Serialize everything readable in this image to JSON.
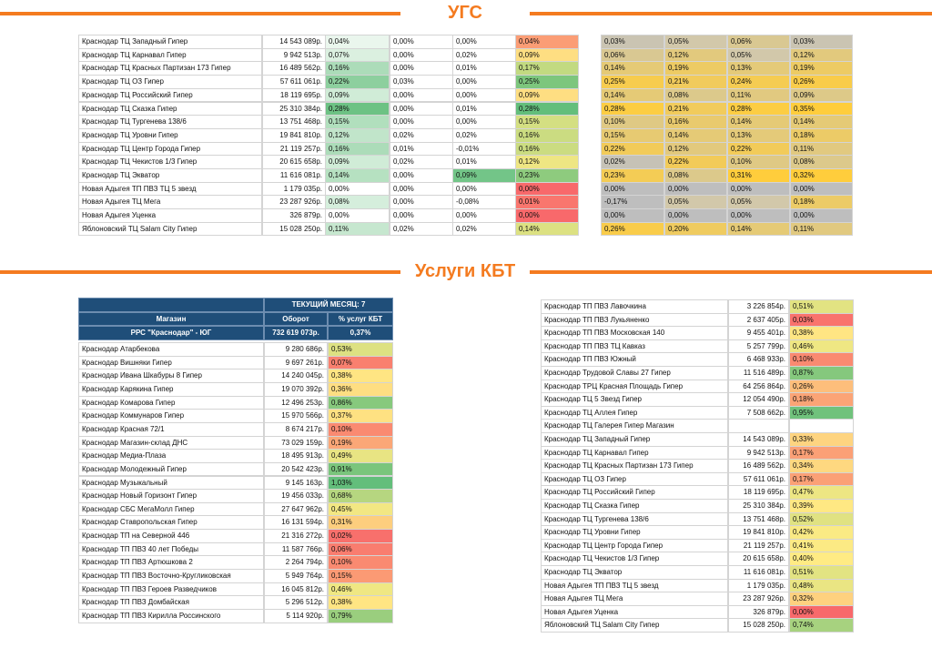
{
  "sections": [
    {
      "title": "УГС"
    },
    {
      "title": "Услуги КБТ"
    }
  ],
  "ugs_table": {
    "rows": [
      [
        "Краснодар ТЦ Западный Гипер",
        "14 543 089р.",
        "0,04%",
        "0,00%",
        "0,00%",
        "0,04%",
        "0,03%",
        "0,05%",
        "0,06%",
        "0,03%"
      ],
      [
        "Краснодар ТЦ Карнавал Гипер",
        "9 942 513р.",
        "0,07%",
        "0,00%",
        "0,02%",
        "0,09%",
        "0,06%",
        "0,12%",
        "0,05%",
        "0,12%"
      ],
      [
        "Краснодар ТЦ Красных Партизан 173 Гипер",
        "16 489 562р.",
        "0,16%",
        "0,00%",
        "0,01%",
        "0,17%",
        "0,14%",
        "0,19%",
        "0,13%",
        "0,19%"
      ],
      [
        "Краснодар ТЦ ОЗ Гипер",
        "57 611 061р.",
        "0,22%",
        "0,03%",
        "0,00%",
        "0,25%",
        "0,25%",
        "0,21%",
        "0,24%",
        "0,26%"
      ],
      [
        "Краснодар ТЦ Российский Гипер",
        "18 119 695р.",
        "0,09%",
        "0,00%",
        "0,00%",
        "0,09%",
        "0,14%",
        "0,08%",
        "0,11%",
        "0,09%"
      ],
      [
        "Краснодар ТЦ Сказка Гипер",
        "25 310 384р.",
        "0,28%",
        "0,00%",
        "0,01%",
        "0,28%",
        "0,28%",
        "0,21%",
        "0,28%",
        "0,35%"
      ],
      [
        "Краснодар ТЦ Тургенева 138/6",
        "13 751 468р.",
        "0,15%",
        "0,00%",
        "0,00%",
        "0,15%",
        "0,10%",
        "0,16%",
        "0,14%",
        "0,14%"
      ],
      [
        "Краснодар ТЦ Уровни Гипер",
        "19 841 810р.",
        "0,12%",
        "0,02%",
        "0,02%",
        "0,16%",
        "0,15%",
        "0,14%",
        "0,13%",
        "0,18%"
      ],
      [
        "Краснодар ТЦ Центр Города Гипер",
        "21 119 257р.",
        "0,16%",
        "0,01%",
        "-0,01%",
        "0,16%",
        "0,22%",
        "0,12%",
        "0,22%",
        "0,11%"
      ],
      [
        "Краснодар ТЦ Чекистов 1/3 Гипер",
        "20 615 658р.",
        "0,09%",
        "0,02%",
        "0,01%",
        "0,12%",
        "0,02%",
        "0,22%",
        "0,10%",
        "0,08%"
      ],
      [
        "Краснодар ТЦ Экватор",
        "11 616 081р.",
        "0,14%",
        "0,00%",
        "0,09%",
        "0,23%",
        "0,23%",
        "0,08%",
        "0,31%",
        "0,32%"
      ],
      [
        "Новая Адыгея ТП ПВЗ ТЦ 5 звезд",
        "1 179 035р.",
        "0,00%",
        "0,00%",
        "0,00%",
        "0,00%",
        "0,00%",
        "0,00%",
        "0,00%",
        "0,00%"
      ],
      [
        "Новая Адыгея ТЦ Мега",
        "23 287 926р.",
        "0,08%",
        "0,00%",
        "-0,08%",
        "0,01%",
        "-0,17%",
        "0,05%",
        "0,05%",
        "0,18%"
      ],
      [
        "Новая Адыгея Уценка",
        "326 879р.",
        "0,00%",
        "0,00%",
        "0,00%",
        "0,00%",
        "0,00%",
        "0,00%",
        "0,00%",
        "0,00%"
      ],
      [
        "Яблоновский ТЦ Salam City Гипер",
        "15 028 250р.",
        "0,11%",
        "0,02%",
        "0,02%",
        "0,14%",
        "0,26%",
        "0,20%",
        "0,14%",
        "0,11%"
      ]
    ]
  },
  "kbt_left": {
    "header": {
      "period": "ТЕКУЩИЙ МЕСЯЦ: 7",
      "columns": [
        "Магазин",
        "Оборот",
        "% услуг КБТ"
      ],
      "total": [
        "РРС \"Краснодар\" - ЮГ",
        "732 619 073р.",
        "0,37%"
      ]
    },
    "rows": [
      [
        "Краснодар Атарбекова",
        "9 280 686р.",
        "0,53%"
      ],
      [
        "Краснодар Вишняки Гипер",
        "9 697 261р.",
        "0,07%"
      ],
      [
        "Краснодар Ивана Шкабуры 8 Гипер",
        "14 240 045р.",
        "0,38%"
      ],
      [
        "Краснодар Карякина Гипер",
        "19 070 392р.",
        "0,36%"
      ],
      [
        "Краснодар Комарова Гипер",
        "12 496 253р.",
        "0,86%"
      ],
      [
        "Краснодар Коммунаров Гипер",
        "15 970 566р.",
        "0,37%"
      ],
      [
        "Краснодар Красная 72/1",
        "8 674 217р.",
        "0,10%"
      ],
      [
        "Краснодар Магазин-склад ДНС",
        "73 029 159р.",
        "0,19%"
      ],
      [
        "Краснодар Медиа-Плаза",
        "18 495 913р.",
        "0,49%"
      ],
      [
        "Краснодар Молодежный Гипер",
        "20 542 423р.",
        "0,91%"
      ],
      [
        "Краснодар Музыкальный",
        "9 145 163р.",
        "1,03%"
      ],
      [
        "Краснодар Новый Горизонт Гипер",
        "19 456 033р.",
        "0,68%"
      ],
      [
        "Краснодар СБС МегаМолл Гипер",
        "27 647 962р.",
        "0,45%"
      ],
      [
        "Краснодар Ставропольская Гипер",
        "16 131 594р.",
        "0,31%"
      ],
      [
        "Краснодар ТП на Северной 446",
        "21 316 272р.",
        "0,02%"
      ],
      [
        "Краснодар ТП ПВЗ 40 лет Победы",
        "11 587 766р.",
        "0,06%"
      ],
      [
        "Краснодар ТП ПВЗ Артюшкова 2",
        "2 264 794р.",
        "0,10%"
      ],
      [
        "Краснодар ТП ПВЗ Восточно-Кругликовская",
        "5 949 764р.",
        "0,15%"
      ],
      [
        "Краснодар ТП ПВЗ Героев Разведчиков",
        "16 045 812р.",
        "0,46%"
      ],
      [
        "Краснодар ТП ПВЗ Домбайская",
        "5 296 512р.",
        "0,38%"
      ],
      [
        "Краснодар ТП ПВЗ Кирилла Россинского",
        "5 114 920р.",
        "0,79%"
      ]
    ]
  },
  "kbt_right": {
    "rows": [
      [
        "Краснодар ТП ПВЗ Лавочкина",
        "3 226 854р.",
        "0,51%"
      ],
      [
        "Краснодар ТП ПВЗ Лукьяненко",
        "2 637 405р.",
        "0,03%"
      ],
      [
        "Краснодар ТП ПВЗ Московская 140",
        "9 455 401р.",
        "0,38%"
      ],
      [
        "Краснодар ТП ПВЗ ТЦ Кавказ",
        "5 257 799р.",
        "0,46%"
      ],
      [
        "Краснодар ТП ПВЗ Южный",
        "6 468 933р.",
        "0,10%"
      ],
      [
        "Краснодар Трудовой Славы 27 Гипер",
        "11 516 489р.",
        "0,87%"
      ],
      [
        "Краснодар ТРЦ Красная Площадь Гипер",
        "64 256 864р.",
        "0,26%"
      ],
      [
        "Краснодар ТЦ 5 Звезд Гипер",
        "12 054 490р.",
        "0,18%"
      ],
      [
        "Краснодар ТЦ Аллея Гипер",
        "7 508 662р.",
        "0,95%"
      ],
      [
        "Краснодар ТЦ Галерея Гипер Магазин"
      ],
      [
        "Краснодар ТЦ Западный Гипер",
        "14 543 089р.",
        "0,33%"
      ],
      [
        "Краснодар ТЦ Карнавал Гипер",
        "9 942 513р.",
        "0,17%"
      ],
      [
        "Краснодар ТЦ Красных Партизан 173 Гипер",
        "16 489 562р.",
        "0,34%"
      ],
      [
        "Краснодар ТЦ ОЗ Гипер",
        "57 611 061р.",
        "0,17%"
      ],
      [
        "Краснодар ТЦ Российский Гипер",
        "18 119 695р.",
        "0,47%"
      ],
      [
        "Краснодар ТЦ Сказка Гипер",
        "25 310 384р.",
        "0,39%"
      ],
      [
        "Краснодар ТЦ Тургенева 138/6",
        "13 751 468р.",
        "0,52%"
      ],
      [
        "Краснодар ТЦ Уровни Гипер",
        "19 841 810р.",
        "0,42%"
      ],
      [
        "Краснодар ТЦ Центр Города Гипер",
        "21 119 257р.",
        "0,41%"
      ],
      [
        "Краснодар ТЦ Чекистов 1/3 Гипер",
        "20 615 658р.",
        "0,40%"
      ],
      [
        "Краснодар ТЦ Экватор",
        "11 616 081р.",
        "0,51%"
      ],
      [
        "Новая Адыгея ТП ПВЗ ТЦ 5 звезд",
        "1 179 035р.",
        "0,48%"
      ],
      [
        "Новая Адыгея ТЦ Мега",
        "23 287 926р.",
        "0,32%"
      ],
      [
        "Новая Адыгея Уценка",
        "326 879р.",
        "0,00%"
      ],
      [
        "Яблоновский ТЦ Salam City Гипер",
        "15 028 250р.",
        "0,74%"
      ]
    ]
  }
}
